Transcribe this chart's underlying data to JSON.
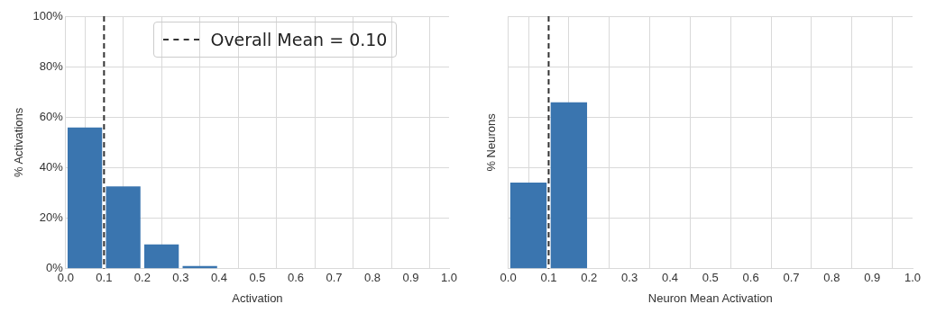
{
  "chart_data": [
    {
      "type": "histogram",
      "xlabel": "Activation",
      "ylabel": "% Activations",
      "bins": [
        0,
        0.1,
        0.2,
        0.3,
        0.4
      ],
      "values": [
        55.9,
        32.6,
        9.6,
        1.1
      ],
      "color": "#3a75af",
      "xlim": [
        0,
        1
      ],
      "xticks": [
        {
          "value": 0,
          "label": "0.0"
        },
        {
          "value": 0.1,
          "label": "0.1"
        },
        {
          "value": 0.2,
          "label": "0.2"
        },
        {
          "value": 0.3,
          "label": "0.3"
        },
        {
          "value": 0.4,
          "label": "0.4"
        },
        {
          "value": 0.5,
          "label": "0.5"
        },
        {
          "value": 0.6,
          "label": "0.6"
        },
        {
          "value": 0.7,
          "label": "0.7"
        },
        {
          "value": 0.8,
          "label": "0.8"
        },
        {
          "value": 0.9,
          "label": "0.9"
        },
        {
          "value": 1,
          "label": "1.0"
        }
      ],
      "ylim": [
        0,
        100
      ],
      "yticks": [
        {
          "value": 0,
          "label": "0%"
        },
        {
          "value": 20,
          "label": "20%"
        },
        {
          "value": 40,
          "label": "40%"
        },
        {
          "value": 60,
          "label": "60%"
        },
        {
          "value": 80,
          "label": "80%"
        },
        {
          "value": 100,
          "label": "100%"
        }
      ],
      "grid": true,
      "legend": "top",
      "ref_lines": [
        {
          "axis": "x",
          "value": 0.1,
          "label": "Overall Mean = 0.10",
          "color": "#333333",
          "line_style": "dashed"
        }
      ]
    },
    {
      "type": "histogram",
      "xlabel": "Neuron Mean Activation",
      "ylabel": "% Neurons",
      "bins": [
        0,
        0.1,
        0.2
      ],
      "values": [
        34.1,
        65.9
      ],
      "color": "#3a75af",
      "xlim": [
        0,
        1
      ],
      "xticks": [
        {
          "value": 0,
          "label": "0.0"
        },
        {
          "value": 0.1,
          "label": "0.1"
        },
        {
          "value": 0.2,
          "label": "0.2"
        },
        {
          "value": 0.3,
          "label": "0.3"
        },
        {
          "value": 0.4,
          "label": "0.4"
        },
        {
          "value": 0.5,
          "label": "0.5"
        },
        {
          "value": 0.6,
          "label": "0.6"
        },
        {
          "value": 0.7,
          "label": "0.7"
        },
        {
          "value": 0.8,
          "label": "0.8"
        },
        {
          "value": 0.9,
          "label": "0.9"
        },
        {
          "value": 1,
          "label": "1.0"
        }
      ],
      "ylim": [
        0,
        100
      ],
      "yticks": [
        {
          "value": 0,
          "label": null
        },
        {
          "value": 20,
          "label": null
        },
        {
          "value": 40,
          "label": null
        },
        {
          "value": 60,
          "label": null
        },
        {
          "value": 80,
          "label": null
        },
        {
          "value": 100,
          "label": null
        }
      ],
      "grid": true,
      "tick_labels": "x",
      "ref_lines": [
        {
          "axis": "x",
          "value": 0.1,
          "color": "#333333",
          "line_style": "dashed"
        }
      ]
    }
  ]
}
